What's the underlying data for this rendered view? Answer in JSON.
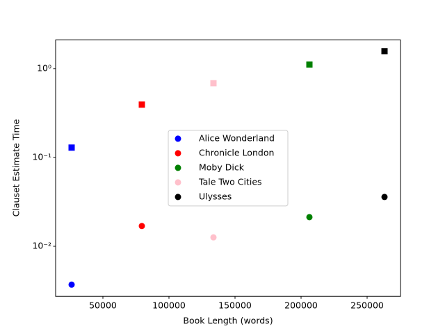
{
  "chart_data": {
    "type": "scatter",
    "xlabel": "Book Length (words)",
    "ylabel": "Clauset Estimate Time",
    "xlim": [
      14210,
      275263
    ],
    "xticks": [
      50000,
      100000,
      150000,
      200000,
      250000
    ],
    "ylim": [
      0.00273,
      2.1
    ],
    "yscale": "log",
    "yticks": [
      {
        "value": 1,
        "label": "10⁰"
      },
      {
        "value": 0.1,
        "label": "10⁻¹"
      },
      {
        "value": 0.01,
        "label": "10⁻²"
      }
    ],
    "legend": "center",
    "series": [
      {
        "name": "Alice Wonderland",
        "color": "#0000ff",
        "marker": "circle",
        "x": [
          26316
        ],
        "values": [
          0.0037
        ]
      },
      {
        "name": "Chronicle London",
        "color": "#ff0000",
        "marker": "circle",
        "x": [
          79474
        ],
        "values": [
          0.0169
        ]
      },
      {
        "name": "Moby Dick",
        "color": "#008000",
        "marker": "circle",
        "x": [
          206316
        ],
        "values": [
          0.0213
        ]
      },
      {
        "name": "Tale Two Cities",
        "color": "#ffc0cb",
        "marker": "circle",
        "x": [
          133684
        ],
        "values": [
          0.0126
        ]
      },
      {
        "name": "Ulysses",
        "color": "#000000",
        "marker": "circle",
        "x": [
          263158
        ],
        "values": [
          0.0359
        ]
      },
      {
        "color": "#0000ff",
        "marker": "square",
        "x": [
          26316
        ],
        "values": [
          0.129
        ]
      },
      {
        "color": "#ff0000",
        "marker": "square",
        "x": [
          79474
        ],
        "values": [
          0.393
        ]
      },
      {
        "color": "#008000",
        "marker": "square",
        "x": [
          206316
        ],
        "values": [
          1.11
        ]
      },
      {
        "color": "#ffc0cb",
        "marker": "square",
        "x": [
          133684
        ],
        "values": [
          0.685
        ]
      },
      {
        "color": "#000000",
        "marker": "square",
        "x": [
          263158
        ],
        "values": [
          1.57
        ]
      }
    ]
  }
}
